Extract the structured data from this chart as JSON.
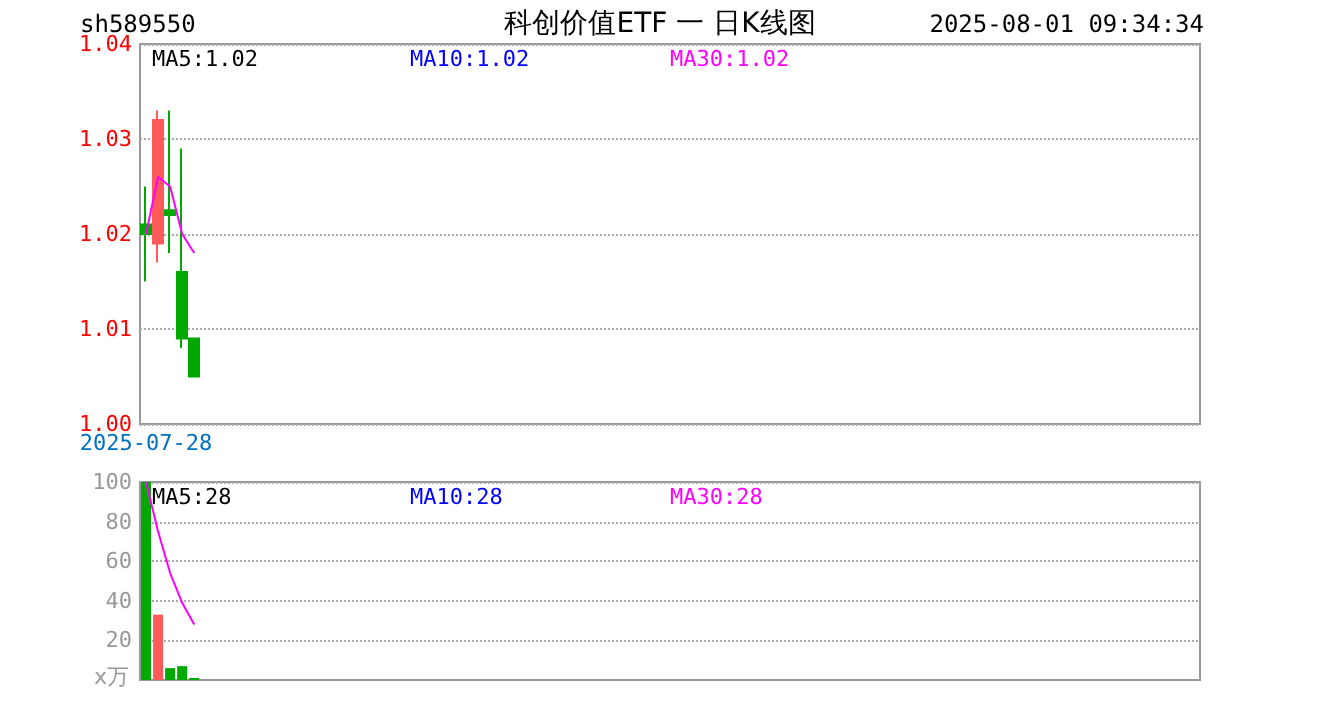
{
  "chart_data": [
    {
      "type": "candlestick",
      "title": "科创价值ETF 一 日K线图",
      "annotations": [
        "sh589550",
        "2025-08-01 09:34:34",
        "MA5:1.02",
        "MA10:1.02",
        "MA30:1.02"
      ],
      "categories": [
        "2025-07-28",
        null,
        null,
        null,
        null,
        null,
        null,
        null,
        null,
        null,
        null,
        null,
        null,
        null,
        null,
        null,
        null,
        null,
        null,
        null,
        null,
        null,
        null,
        null,
        null,
        null,
        null,
        null,
        null,
        null,
        null,
        null,
        null,
        null,
        null,
        null,
        null,
        null,
        null,
        null,
        null,
        null,
        null,
        null,
        null,
        null,
        null,
        null,
        null,
        null,
        null,
        null,
        null,
        null,
        null,
        null,
        null,
        null,
        null,
        null,
        null,
        null,
        null,
        null,
        null,
        null,
        null,
        null,
        null,
        null,
        null,
        null,
        null,
        null,
        null,
        null,
        null,
        null,
        null,
        null,
        null,
        null,
        null,
        null,
        null,
        null,
        null,
        null
      ],
      "ohlc": [
        [
          1.021,
          1.025,
          1.015,
          1.02
        ],
        [
          1.019,
          1.033,
          1.017,
          1.032
        ],
        [
          1.0225,
          1.033,
          1.018,
          1.022
        ],
        [
          1.016,
          1.029,
          1.008,
          1.009
        ],
        [
          1.009,
          1.009,
          1.005,
          1.005
        ],
        null,
        null,
        null,
        null,
        null,
        null,
        null,
        null,
        null,
        null,
        null,
        null,
        null,
        null,
        null,
        null,
        null,
        null,
        null,
        null,
        null,
        null,
        null,
        null,
        null,
        null,
        null,
        null,
        null,
        null,
        null,
        null,
        null,
        null,
        null,
        null,
        null,
        null,
        null,
        null,
        null,
        null,
        null,
        null,
        null,
        null,
        null,
        null,
        null,
        null,
        null,
        null,
        null,
        null,
        null,
        null,
        null,
        null,
        null,
        null,
        null,
        null,
        null,
        null,
        null,
        null,
        null,
        null,
        null,
        null,
        null,
        null,
        null,
        null,
        null,
        null,
        null,
        null,
        null,
        null,
        null,
        null,
        null
      ],
      "colors": [
        "#00a800",
        "#ff5a5a",
        "#00a800",
        "#00a800",
        "#00a800",
        null,
        null,
        null,
        null,
        null,
        null,
        null,
        null,
        null,
        null,
        null,
        null,
        null,
        null,
        null,
        null,
        null,
        null,
        null,
        null,
        null,
        null,
        null,
        null,
        null,
        null,
        null,
        null,
        null,
        null,
        null,
        null,
        null,
        null,
        null,
        null,
        null,
        null,
        null,
        null,
        null,
        null,
        null,
        null,
        null,
        null,
        null,
        null,
        null,
        null,
        null,
        null,
        null,
        null,
        null,
        null,
        null,
        null,
        null,
        null,
        null,
        null,
        null,
        null,
        null,
        null,
        null,
        null,
        null,
        null,
        null,
        null,
        null,
        null,
        null,
        null,
        null,
        null,
        null,
        null,
        null,
        null,
        null
      ],
      "series": [
        {
          "type": "line",
          "color": "#ff00ff",
          "values": [
            1.02,
            1.026,
            1.025,
            1.02,
            1.018,
            null,
            null,
            null,
            null,
            null,
            null,
            null,
            null,
            null,
            null,
            null,
            null,
            null,
            null,
            null,
            null,
            null,
            null,
            null,
            null,
            null,
            null,
            null,
            null,
            null,
            null,
            null,
            null,
            null,
            null,
            null,
            null,
            null,
            null,
            null,
            null,
            null,
            null,
            null,
            null,
            null,
            null,
            null,
            null,
            null,
            null,
            null,
            null,
            null,
            null,
            null,
            null,
            null,
            null,
            null,
            null,
            null,
            null,
            null,
            null,
            null,
            null,
            null,
            null,
            null,
            null,
            null,
            null,
            null,
            null,
            null,
            null,
            null,
            null,
            null,
            null,
            null,
            null,
            null,
            null,
            null,
            null,
            null
          ]
        }
      ],
      "ylim": [
        1.0,
        1.04
      ],
      "yticks": [
        {
          "value": 1.0,
          "label": "1.00"
        },
        1.01,
        1.02,
        1.03,
        1.04
      ],
      "grid": "y"
    },
    {
      "type": "bar",
      "ylabel": "x万",
      "annotations": [
        "MA5:28",
        "MA10:28",
        "MA30:28"
      ],
      "categories": [
        null,
        null,
        null,
        null,
        null,
        null,
        null,
        null,
        null,
        null,
        null,
        null,
        null,
        null,
        null,
        null,
        null,
        null,
        null,
        null,
        null,
        null,
        null,
        null,
        null,
        null,
        null,
        null,
        null,
        null,
        null,
        null,
        null,
        null,
        null,
        null,
        null,
        null,
        null,
        null,
        null,
        null,
        null,
        null,
        null,
        null,
        null,
        null,
        null,
        null,
        null,
        null,
        null,
        null,
        null,
        null,
        null,
        null,
        null,
        null,
        null,
        null,
        null,
        null,
        null,
        null,
        null,
        null,
        null,
        null,
        null,
        null,
        null,
        null,
        null,
        null,
        null,
        null,
        null,
        null,
        null,
        null,
        null,
        null,
        null,
        null,
        null,
        null
      ],
      "series": [
        {
          "values": [
            100,
            33,
            6,
            7,
            1,
            null,
            null,
            null,
            null,
            null,
            null,
            null,
            null,
            null,
            null,
            null,
            null,
            null,
            null,
            null,
            null,
            null,
            null,
            null,
            null,
            null,
            null,
            null,
            null,
            null,
            null,
            null,
            null,
            null,
            null,
            null,
            null,
            null,
            null,
            null,
            null,
            null,
            null,
            null,
            null,
            null,
            null,
            null,
            null,
            null,
            null,
            null,
            null,
            null,
            null,
            null,
            null,
            null,
            null,
            null,
            null,
            null,
            null,
            null,
            null,
            null,
            null,
            null,
            null,
            null,
            null,
            null,
            null,
            null,
            null,
            null,
            null,
            null,
            null,
            null,
            null,
            null,
            null,
            null,
            null,
            null,
            null,
            null
          ],
          "colors": [
            "#00a800",
            "#ff5a5a",
            "#00a800",
            "#00a800",
            "#00a800",
            null,
            null,
            null,
            null,
            null,
            null,
            null,
            null,
            null,
            null,
            null,
            null,
            null,
            null,
            null,
            null,
            null,
            null,
            null,
            null,
            null,
            null,
            null,
            null,
            null,
            null,
            null,
            null,
            null,
            null,
            null,
            null,
            null,
            null,
            null,
            null,
            null,
            null,
            null,
            null,
            null,
            null,
            null,
            null,
            null,
            null,
            null,
            null,
            null,
            null,
            null,
            null,
            null,
            null,
            null,
            null,
            null,
            null,
            null,
            null,
            null,
            null,
            null,
            null,
            null,
            null,
            null,
            null,
            null,
            null,
            null,
            null,
            null,
            null,
            null,
            null,
            null,
            null,
            null,
            null,
            null,
            null,
            null
          ]
        },
        {
          "type": "line",
          "color": "#ff00ff",
          "values": [
            100,
            75,
            54,
            39,
            28,
            null,
            null,
            null,
            null,
            null,
            null,
            null,
            null,
            null,
            null,
            null,
            null,
            null,
            null,
            null,
            null,
            null,
            null,
            null,
            null,
            null,
            null,
            null,
            null,
            null,
            null,
            null,
            null,
            null,
            null,
            null,
            null,
            null,
            null,
            null,
            null,
            null,
            null,
            null,
            null,
            null,
            null,
            null,
            null,
            null,
            null,
            null,
            null,
            null,
            null,
            null,
            null,
            null,
            null,
            null,
            null,
            null,
            null,
            null,
            null,
            null,
            null,
            null,
            null,
            null,
            null,
            null,
            null,
            null,
            null,
            null,
            null,
            null,
            null,
            null,
            null,
            null,
            null,
            null,
            null,
            null,
            null,
            null
          ]
        }
      ],
      "ylim": [
        0,
        100
      ],
      "yticks": [
        20,
        40,
        60,
        80,
        100
      ],
      "grid": "y",
      "tick_labels": "y"
    }
  ]
}
